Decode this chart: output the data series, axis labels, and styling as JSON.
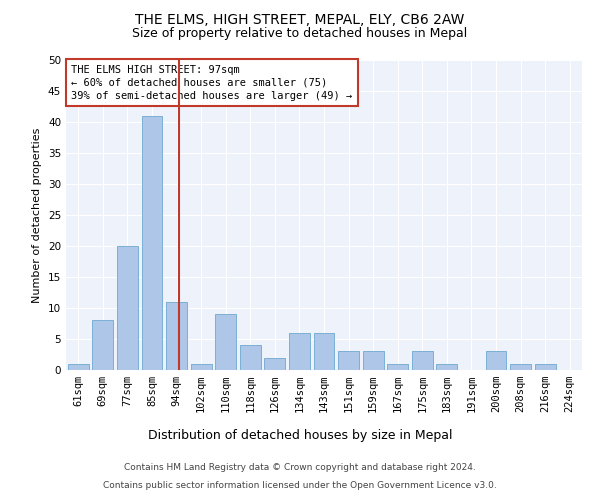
{
  "title": "THE ELMS, HIGH STREET, MEPAL, ELY, CB6 2AW",
  "subtitle": "Size of property relative to detached houses in Mepal",
  "xlabel": "Distribution of detached houses by size in Mepal",
  "ylabel": "Number of detached properties",
  "bin_labels": [
    "61sqm",
    "69sqm",
    "77sqm",
    "85sqm",
    "94sqm",
    "102sqm",
    "110sqm",
    "118sqm",
    "126sqm",
    "134sqm",
    "143sqm",
    "151sqm",
    "159sqm",
    "167sqm",
    "175sqm",
    "183sqm",
    "191sqm",
    "200sqm",
    "208sqm",
    "216sqm",
    "224sqm"
  ],
  "bar_heights": [
    1,
    8,
    20,
    41,
    11,
    1,
    9,
    4,
    2,
    6,
    6,
    3,
    3,
    1,
    3,
    1,
    0,
    3,
    1,
    1,
    0
  ],
  "bar_color": "#aec6e8",
  "bar_edge_color": "#7aafd4",
  "vline_color": "#c0392b",
  "vline_x": 4.1,
  "annotation_text": "THE ELMS HIGH STREET: 97sqm\n← 60% of detached houses are smaller (75)\n39% of semi-detached houses are larger (49) →",
  "annotation_box_color": "#c0392b",
  "ylim": [
    0,
    50
  ],
  "yticks": [
    0,
    5,
    10,
    15,
    20,
    25,
    30,
    35,
    40,
    45,
    50
  ],
  "background_color": "#eef2fa",
  "footer_line1": "Contains HM Land Registry data © Crown copyright and database right 2024.",
  "footer_line2": "Contains public sector information licensed under the Open Government Licence v3.0.",
  "title_fontsize": 10,
  "subtitle_fontsize": 9,
  "xlabel_fontsize": 9,
  "ylabel_fontsize": 8,
  "tick_fontsize": 7.5,
  "annotation_fontsize": 7.5,
  "footer_fontsize": 6.5
}
